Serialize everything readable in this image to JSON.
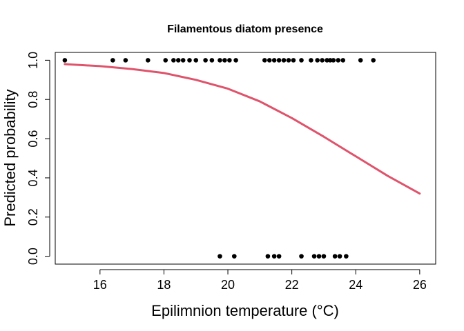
{
  "chart_data": {
    "type": "scatter",
    "title": "Filamentous diatom presence",
    "xlabel": "Epilimnion temperature (°C)",
    "ylabel": "Predicted probability",
    "xlim": [
      14.6,
      26.5
    ],
    "ylim": [
      -0.04,
      1.04
    ],
    "x_ticks": [
      16,
      18,
      20,
      22,
      24,
      26
    ],
    "y_ticks": [
      0.0,
      0.2,
      0.4,
      0.6,
      0.8,
      1.0
    ],
    "x_tick_labels": [
      "16",
      "18",
      "20",
      "22",
      "24",
      "26"
    ],
    "y_tick_labels": [
      "0.0",
      "0.2",
      "0.4",
      "0.6",
      "0.8",
      "1.0"
    ],
    "grid": false,
    "series": [
      {
        "kind": "points",
        "color": "#000000",
        "points": [
          {
            "x": 14.9,
            "y": 1
          },
          {
            "x": 16.4,
            "y": 1
          },
          {
            "x": 16.8,
            "y": 1
          },
          {
            "x": 17.5,
            "y": 1
          },
          {
            "x": 18.05,
            "y": 1
          },
          {
            "x": 18.3,
            "y": 1
          },
          {
            "x": 18.45,
            "y": 1
          },
          {
            "x": 18.6,
            "y": 1
          },
          {
            "x": 18.8,
            "y": 1
          },
          {
            "x": 19.0,
            "y": 1
          },
          {
            "x": 19.3,
            "y": 1
          },
          {
            "x": 19.5,
            "y": 1
          },
          {
            "x": 19.75,
            "y": 1
          },
          {
            "x": 19.9,
            "y": 1
          },
          {
            "x": 20.05,
            "y": 1
          },
          {
            "x": 20.25,
            "y": 1
          },
          {
            "x": 21.15,
            "y": 1
          },
          {
            "x": 21.3,
            "y": 1
          },
          {
            "x": 21.45,
            "y": 1
          },
          {
            "x": 21.6,
            "y": 1
          },
          {
            "x": 21.75,
            "y": 1
          },
          {
            "x": 21.9,
            "y": 1
          },
          {
            "x": 22.05,
            "y": 1
          },
          {
            "x": 22.3,
            "y": 1
          },
          {
            "x": 22.6,
            "y": 1
          },
          {
            "x": 22.8,
            "y": 1
          },
          {
            "x": 22.95,
            "y": 1
          },
          {
            "x": 23.1,
            "y": 1
          },
          {
            "x": 23.2,
            "y": 1
          },
          {
            "x": 23.3,
            "y": 1
          },
          {
            "x": 23.45,
            "y": 1
          },
          {
            "x": 23.6,
            "y": 1
          },
          {
            "x": 24.15,
            "y": 1
          },
          {
            "x": 24.55,
            "y": 1
          },
          {
            "x": 19.75,
            "y": 0
          },
          {
            "x": 20.2,
            "y": 0
          },
          {
            "x": 21.25,
            "y": 0
          },
          {
            "x": 21.45,
            "y": 0
          },
          {
            "x": 21.6,
            "y": 0
          },
          {
            "x": 22.3,
            "y": 0
          },
          {
            "x": 22.7,
            "y": 0
          },
          {
            "x": 22.85,
            "y": 0
          },
          {
            "x": 23.0,
            "y": 0
          },
          {
            "x": 23.35,
            "y": 0
          },
          {
            "x": 23.5,
            "y": 0
          },
          {
            "x": 23.7,
            "y": 0
          }
        ]
      },
      {
        "kind": "line",
        "color": "#DF536B",
        "x": [
          14.9,
          16.0,
          17.0,
          18.0,
          19.0,
          20.0,
          21.0,
          22.0,
          23.0,
          24.0,
          25.0,
          26.0
        ],
        "y": [
          0.98,
          0.97,
          0.955,
          0.935,
          0.9,
          0.855,
          0.79,
          0.705,
          0.61,
          0.51,
          0.41,
          0.32
        ]
      }
    ]
  }
}
